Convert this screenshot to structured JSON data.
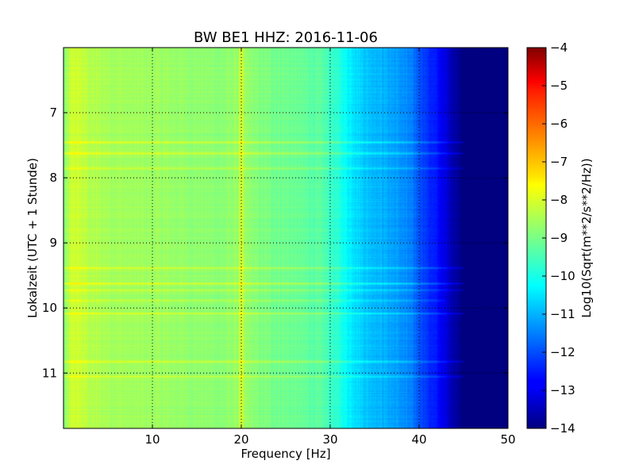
{
  "chart_data": {
    "type": "heatmap",
    "title": "BW BE1 HHZ: 2016-11-06",
    "xlabel": "Frequency [Hz]",
    "ylabel": "Lokalzeit (UTC + 1 Stunde)",
    "colorbar_label": "Log10(Sqrt(m**2/s**2/Hz))",
    "xlim": [
      0,
      50
    ],
    "ylim": [
      11.85,
      6.0
    ],
    "clim": [
      -14,
      -4
    ],
    "colormap": "jet",
    "grid": true,
    "x_ticks": [
      "10",
      "20",
      "30",
      "40",
      "50"
    ],
    "y_ticks": [
      "7",
      "8",
      "9",
      "10",
      "11"
    ],
    "colorbar_ticks": [
      "-14",
      "-13",
      "-12",
      "-11",
      "-10",
      "-9",
      "-8",
      "-7",
      "-6",
      "-5",
      "-4"
    ],
    "frequency_profile": {
      "frequency_hz": [
        0,
        1,
        2,
        3,
        5,
        8,
        10,
        14,
        18,
        20,
        22,
        26,
        29,
        31,
        32,
        34,
        36,
        38,
        39,
        40,
        41,
        42,
        43,
        44,
        45,
        50
      ],
      "level": [
        -9.0,
        -8.2,
        -8.3,
        -8.5,
        -8.6,
        -8.7,
        -8.7,
        -8.8,
        -8.9,
        -8.7,
        -9.0,
        -9.2,
        -9.4,
        -9.9,
        -10.3,
        -10.8,
        -11.0,
        -11.3,
        -11.5,
        -11.9,
        -12.3,
        -12.6,
        -13.1,
        -13.6,
        -14.0,
        -14.0
      ]
    },
    "bright_lines": [
      {
        "hour": 7.45,
        "boost": 0.6,
        "fmax": 45
      },
      {
        "hour": 7.62,
        "boost": 0.6,
        "fmax": 45
      },
      {
        "hour": 7.85,
        "boost": 0.5,
        "fmax": 45
      },
      {
        "hour": 9.38,
        "boost": 0.7,
        "fmax": 45
      },
      {
        "hour": 9.62,
        "boost": 0.7,
        "fmax": 45
      },
      {
        "hour": 9.72,
        "boost": 0.5,
        "fmax": 45
      },
      {
        "hour": 9.88,
        "boost": 0.4,
        "fmax": 43
      },
      {
        "hour": 10.08,
        "boost": 0.6,
        "fmax": 45
      },
      {
        "hour": 10.82,
        "boost": 0.6,
        "fmax": 45
      },
      {
        "hour": 11.05,
        "boost": 0.6,
        "fmax": 45
      }
    ]
  }
}
